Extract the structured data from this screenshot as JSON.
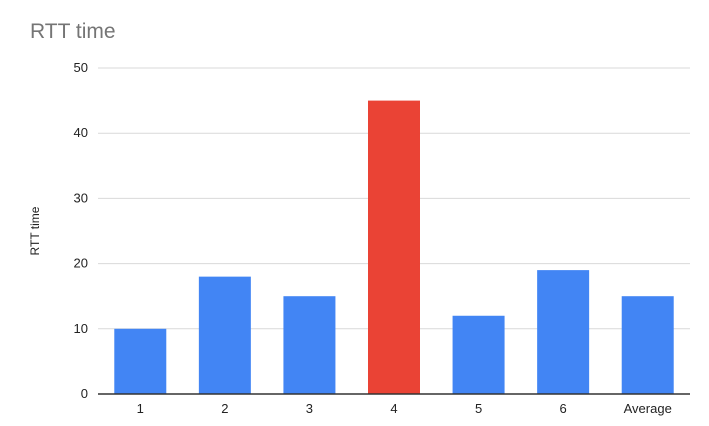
{
  "chart_data": {
    "type": "bar",
    "title": "RTT time",
    "xlabel": "",
    "ylabel": "RTT time",
    "ylim": [
      0,
      50
    ],
    "yticks": [
      0,
      10,
      20,
      30,
      40,
      50
    ],
    "categories": [
      "1",
      "2",
      "3",
      "4",
      "5",
      "6",
      "Average"
    ],
    "values": [
      10,
      18,
      15,
      45,
      12,
      19,
      15
    ],
    "bar_colors": [
      "#4285F4",
      "#4285F4",
      "#4285F4",
      "#EA4335",
      "#4285F4",
      "#4285F4",
      "#4285F4"
    ],
    "grid": true,
    "legend": "none"
  }
}
